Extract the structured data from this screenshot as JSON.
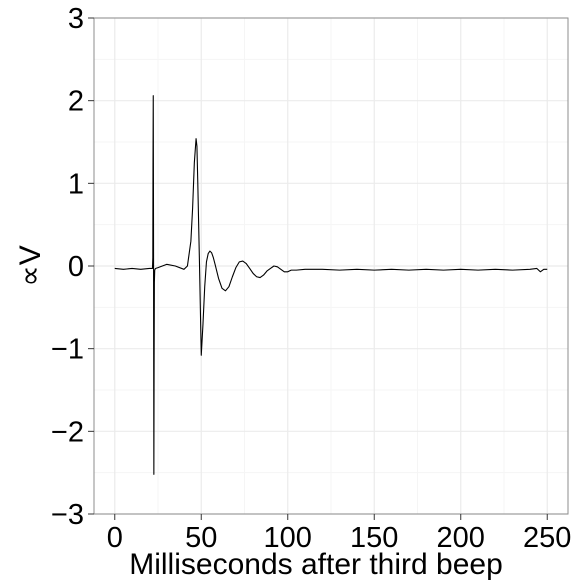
{
  "chart_data": {
    "type": "line",
    "title": "",
    "xlabel": "Milliseconds after third beep",
    "ylabel": "∝V",
    "xlim": [
      -12,
      262
    ],
    "ylim": [
      -3,
      3
    ],
    "x_ticks": [
      0,
      50,
      100,
      150,
      200,
      250
    ],
    "x_tick_labels": [
      "0",
      "50",
      "100",
      "150",
      "200",
      "250"
    ],
    "y_ticks": [
      -3,
      -2,
      -1,
      0,
      1,
      2,
      3
    ],
    "y_tick_labels": [
      "−3",
      "−2",
      "−1",
      "0",
      "1",
      "2",
      "3"
    ],
    "grid": true,
    "legend": "none",
    "colors": {
      "line": "#000000",
      "grid_major": "#ebebeb",
      "grid_minor": "#f5f5f5",
      "panel_border": "#8c8c8c",
      "background": "#ffffff"
    },
    "series": [
      {
        "x": [
          0,
          5,
          10,
          15,
          20,
          21.8,
          22,
          22.1,
          22.25,
          22.4,
          22.5,
          22.6,
          22.75,
          22.9,
          23.1,
          23.5,
          25,
          30,
          35,
          40,
          42,
          44,
          45,
          46,
          47,
          47.5,
          48,
          49,
          50,
          51,
          52,
          53,
          54,
          55,
          56,
          57,
          58,
          60,
          62,
          64,
          66,
          68,
          70,
          72,
          74,
          76,
          78,
          80,
          82,
          84,
          86,
          88,
          90,
          92,
          94,
          96,
          98,
          100,
          102,
          105,
          110,
          115,
          120,
          130,
          140,
          150,
          160,
          170,
          180,
          190,
          200,
          210,
          220,
          230,
          240,
          244,
          246,
          248,
          250
        ],
        "y": [
          -0.03,
          -0.04,
          -0.03,
          -0.04,
          -0.03,
          -0.03,
          0.1,
          1.2,
          2.06,
          0.5,
          -1.0,
          -2.52,
          -1.2,
          -0.2,
          -0.05,
          -0.03,
          -0.02,
          0.02,
          0.0,
          -0.04,
          0.0,
          0.3,
          0.7,
          1.25,
          1.54,
          1.45,
          1.0,
          0.0,
          -1.08,
          -0.7,
          -0.25,
          0.05,
          0.15,
          0.18,
          0.16,
          0.1,
          0.02,
          -0.15,
          -0.27,
          -0.3,
          -0.25,
          -0.13,
          -0.02,
          0.05,
          0.06,
          0.03,
          -0.03,
          -0.09,
          -0.13,
          -0.14,
          -0.11,
          -0.06,
          -0.03,
          0.0,
          -0.01,
          -0.04,
          -0.07,
          -0.07,
          -0.05,
          -0.05,
          -0.04,
          -0.04,
          -0.04,
          -0.05,
          -0.04,
          -0.05,
          -0.04,
          -0.05,
          -0.04,
          -0.05,
          -0.04,
          -0.05,
          -0.04,
          -0.05,
          -0.04,
          -0.03,
          -0.07,
          -0.04,
          -0.04
        ]
      }
    ]
  }
}
